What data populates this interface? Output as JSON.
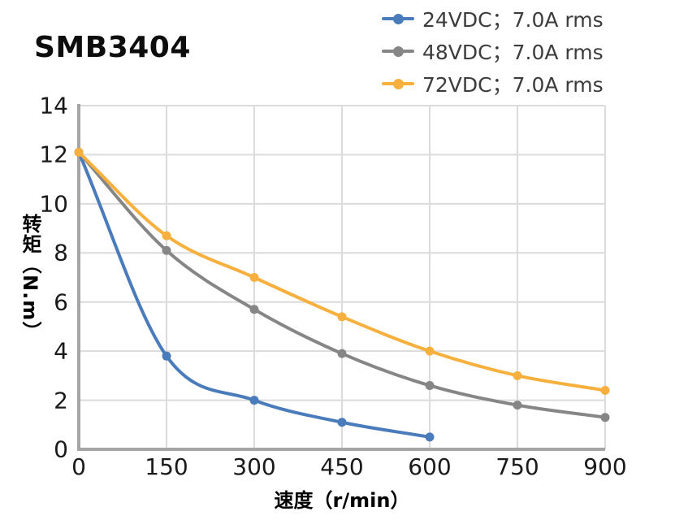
{
  "title": "SMB3404",
  "chart_data": {
    "type": "line",
    "title": "SMB3404",
    "xlabel": "速度（r/min）",
    "ylabel": "转矩（N.m）",
    "xlim": [
      0,
      900
    ],
    "ylim": [
      0,
      14
    ],
    "xticks": [
      0,
      150,
      300,
      450,
      600,
      750,
      900
    ],
    "yticks": [
      0,
      2,
      4,
      6,
      8,
      10,
      12,
      14
    ],
    "grid": true,
    "grid_color": "#DBDBDB",
    "axis_color": "#A5A5A5",
    "tick_text_color": "#1A1A1A",
    "legend_position": "top-right",
    "series": [
      {
        "name": "24VDC；7.0A rms",
        "color": "#4A7CBB",
        "x": [
          0,
          150,
          300,
          450,
          600
        ],
        "y": [
          12.1,
          3.8,
          2.0,
          1.1,
          0.5
        ]
      },
      {
        "name": "48VDC；7.0A rms",
        "color": "#868686",
        "x": [
          0,
          150,
          300,
          450,
          600,
          750,
          900
        ],
        "y": [
          12.1,
          8.1,
          5.7,
          3.9,
          2.6,
          1.8,
          1.3
        ]
      },
      {
        "name": "72VDC；7.0A rms",
        "color": "#F7B03E",
        "x": [
          0,
          150,
          300,
          450,
          600,
          750,
          900
        ],
        "y": [
          12.1,
          8.7,
          7.0,
          5.4,
          4.0,
          3.0,
          2.4
        ]
      }
    ]
  }
}
